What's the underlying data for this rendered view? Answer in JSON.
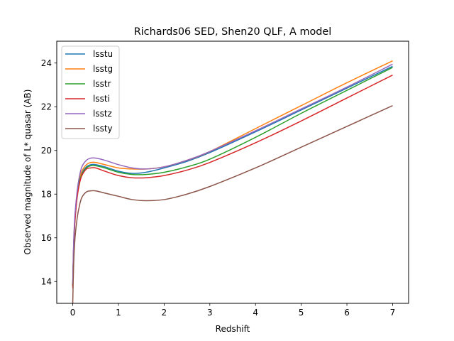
{
  "chart_data": {
    "type": "line",
    "title": "Richards06 SED, Shen20 QLF, A model",
    "xlabel": "Redshift",
    "ylabel": "Observed magnitude of L* quasar (AB)",
    "xlim": [
      -0.35,
      7.35
    ],
    "ylim": [
      13.0,
      25.0
    ],
    "xticks": [
      0,
      1,
      2,
      3,
      4,
      5,
      6,
      7
    ],
    "yticks": [
      14,
      16,
      18,
      20,
      22,
      24
    ],
    "grid": false,
    "legend_position": "top-left",
    "series": [
      {
        "name": "lsstu",
        "color": "#1f77b4",
        "points": [
          [
            0.0,
            13.8
          ],
          [
            0.02,
            15.6
          ],
          [
            0.05,
            16.9
          ],
          [
            0.1,
            18.0
          ],
          [
            0.15,
            18.6
          ],
          [
            0.2,
            18.95
          ],
          [
            0.3,
            19.25
          ],
          [
            0.4,
            19.35
          ],
          [
            0.5,
            19.35
          ],
          [
            0.7,
            19.25
          ],
          [
            1.0,
            19.05
          ],
          [
            1.3,
            18.95
          ],
          [
            1.6,
            19.0
          ],
          [
            2.0,
            19.2
          ],
          [
            2.5,
            19.5
          ],
          [
            3.0,
            19.9
          ],
          [
            4.0,
            20.85
          ],
          [
            5.0,
            21.85
          ],
          [
            6.0,
            22.85
          ],
          [
            7.0,
            23.85
          ]
        ]
      },
      {
        "name": "lsstg",
        "color": "#ff7f0e",
        "points": [
          [
            0.0,
            13.8
          ],
          [
            0.02,
            15.7
          ],
          [
            0.05,
            17.0
          ],
          [
            0.1,
            18.1
          ],
          [
            0.15,
            18.7
          ],
          [
            0.2,
            19.05
          ],
          [
            0.3,
            19.35
          ],
          [
            0.4,
            19.45
          ],
          [
            0.5,
            19.45
          ],
          [
            0.7,
            19.35
          ],
          [
            1.0,
            19.2
          ],
          [
            1.3,
            19.15
          ],
          [
            1.6,
            19.15
          ],
          [
            2.0,
            19.25
          ],
          [
            2.5,
            19.55
          ],
          [
            3.0,
            19.95
          ],
          [
            4.0,
            21.0
          ],
          [
            5.0,
            22.05
          ],
          [
            6.0,
            23.1
          ],
          [
            7.0,
            24.1
          ]
        ]
      },
      {
        "name": "lsstr",
        "color": "#2ca02c",
        "points": [
          [
            0.0,
            13.8
          ],
          [
            0.02,
            15.6
          ],
          [
            0.05,
            16.9
          ],
          [
            0.1,
            18.0
          ],
          [
            0.15,
            18.6
          ],
          [
            0.2,
            18.9
          ],
          [
            0.3,
            19.2
          ],
          [
            0.4,
            19.3
          ],
          [
            0.5,
            19.3
          ],
          [
            0.7,
            19.2
          ],
          [
            1.0,
            19.0
          ],
          [
            1.3,
            18.9
          ],
          [
            1.6,
            18.9
          ],
          [
            2.0,
            19.0
          ],
          [
            2.5,
            19.25
          ],
          [
            3.0,
            19.6
          ],
          [
            4.0,
            20.6
          ],
          [
            5.0,
            21.7
          ],
          [
            6.0,
            22.75
          ],
          [
            7.0,
            23.8
          ]
        ]
      },
      {
        "name": "lssti",
        "color": "#d62728",
        "points": [
          [
            0.0,
            13.7
          ],
          [
            0.02,
            15.5
          ],
          [
            0.05,
            16.8
          ],
          [
            0.1,
            17.9
          ],
          [
            0.15,
            18.5
          ],
          [
            0.2,
            18.85
          ],
          [
            0.3,
            19.15
          ],
          [
            0.4,
            19.2
          ],
          [
            0.5,
            19.2
          ],
          [
            0.7,
            19.05
          ],
          [
            1.0,
            18.85
          ],
          [
            1.3,
            18.75
          ],
          [
            1.6,
            18.75
          ],
          [
            2.0,
            18.85
          ],
          [
            2.5,
            19.1
          ],
          [
            3.0,
            19.45
          ],
          [
            4.0,
            20.35
          ],
          [
            5.0,
            21.35
          ],
          [
            6.0,
            22.4
          ],
          [
            7.0,
            23.45
          ]
        ]
      },
      {
        "name": "lsstz",
        "color": "#9467bd",
        "points": [
          [
            0.0,
            13.9
          ],
          [
            0.02,
            15.8
          ],
          [
            0.05,
            17.1
          ],
          [
            0.1,
            18.2
          ],
          [
            0.15,
            18.85
          ],
          [
            0.2,
            19.25
          ],
          [
            0.3,
            19.55
          ],
          [
            0.4,
            19.65
          ],
          [
            0.5,
            19.65
          ],
          [
            0.7,
            19.55
          ],
          [
            1.0,
            19.35
          ],
          [
            1.3,
            19.2
          ],
          [
            1.6,
            19.15
          ],
          [
            2.0,
            19.25
          ],
          [
            2.5,
            19.55
          ],
          [
            3.0,
            19.95
          ],
          [
            4.0,
            20.9
          ],
          [
            5.0,
            21.9
          ],
          [
            6.0,
            22.9
          ],
          [
            7.0,
            23.95
          ]
        ]
      },
      {
        "name": "lssty",
        "color": "#8c564b",
        "points": [
          [
            0.0,
            13.0
          ],
          [
            0.02,
            14.8
          ],
          [
            0.05,
            16.0
          ],
          [
            0.1,
            16.95
          ],
          [
            0.15,
            17.5
          ],
          [
            0.2,
            17.85
          ],
          [
            0.3,
            18.1
          ],
          [
            0.4,
            18.15
          ],
          [
            0.5,
            18.15
          ],
          [
            0.7,
            18.05
          ],
          [
            1.0,
            17.9
          ],
          [
            1.3,
            17.75
          ],
          [
            1.6,
            17.7
          ],
          [
            2.0,
            17.75
          ],
          [
            2.5,
            18.0
          ],
          [
            3.0,
            18.35
          ],
          [
            4.0,
            19.2
          ],
          [
            5.0,
            20.15
          ],
          [
            6.0,
            21.1
          ],
          [
            7.0,
            22.05
          ]
        ]
      }
    ]
  }
}
